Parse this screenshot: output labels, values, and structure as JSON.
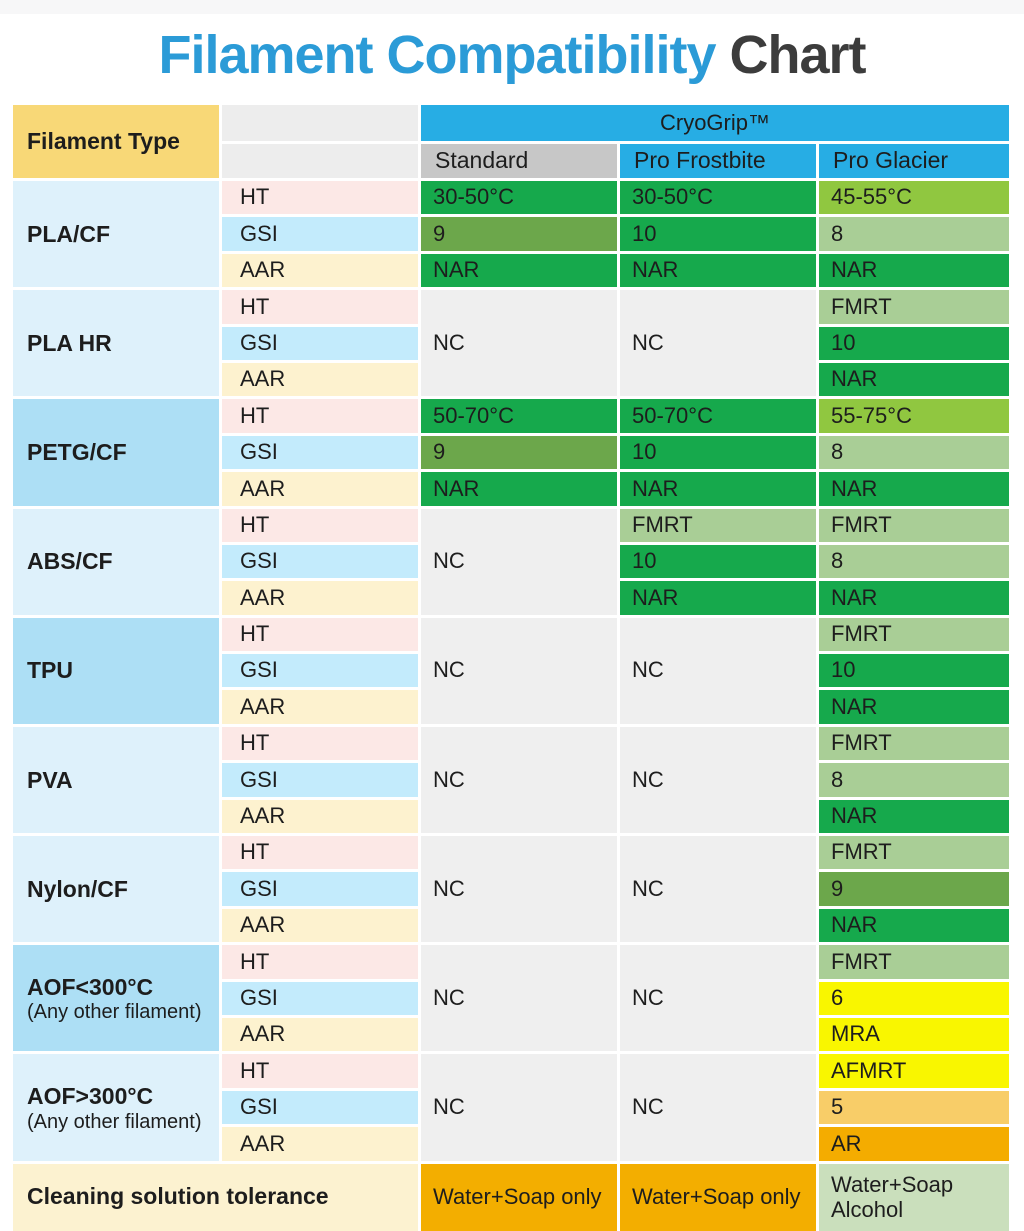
{
  "title": {
    "highlight": "Filament Compatibility",
    "rest": "Chart"
  },
  "palette": {
    "title_blue": "#2b9bd7",
    "title_dark": "#3c3c3c",
    "header_blue": "#27ade4",
    "header_gray": "#c7c7c7",
    "header_yellow": "#f8d877",
    "row_blue_light": "#def1fb",
    "row_blue_dark": "#addff5",
    "metric_pink": "#fce8e6",
    "metric_cyan": "#c3ebfc",
    "metric_cream": "#fdf2cf",
    "value_green": "#16a94c",
    "value_olive": "#6ca74b",
    "value_sage": "#a9ce96",
    "value_lime": "#90c740",
    "value_yellow": "#f9f600",
    "value_amber": "#f8cd68",
    "value_orange": "#f4ac00",
    "nc_gray": "#efefef",
    "footer_cream": "#fcf2d0",
    "footer_orange": "#f3ae00",
    "footer_sage": "#cadfbc"
  },
  "header": {
    "filament_type": "Filament Type",
    "brand": "CryoGrip™",
    "plates": [
      "Standard",
      "Pro Frostbite",
      "Pro Glacier"
    ]
  },
  "metrics": [
    "HT",
    "GSI",
    "AAR"
  ],
  "groups": [
    {
      "label": "PLA/CF",
      "note": "",
      "std": [
        "30-50°C",
        "9",
        "NAR"
      ],
      "fro": [
        "30-50°C",
        "10",
        "NAR"
      ],
      "gla": [
        "45-55°C",
        "8",
        "NAR"
      ]
    },
    {
      "label": "PLA HR",
      "note": "",
      "std": "NC",
      "fro": "NC",
      "gla": [
        "FMRT",
        "10",
        "NAR"
      ]
    },
    {
      "label": "PETG/CF",
      "note": "",
      "std": [
        "50-70°C",
        "9",
        "NAR"
      ],
      "fro": [
        "50-70°C",
        "10",
        "NAR"
      ],
      "gla": [
        "55-75°C",
        "8",
        "NAR"
      ]
    },
    {
      "label": "ABS/CF",
      "note": "",
      "std": "NC",
      "fro": [
        "FMRT",
        "10",
        "NAR"
      ],
      "gla": [
        "FMRT",
        "8",
        "NAR"
      ]
    },
    {
      "label": "TPU",
      "note": "",
      "std": "NC",
      "fro": "NC",
      "gla": [
        "FMRT",
        "10",
        "NAR"
      ]
    },
    {
      "label": "PVA",
      "note": "",
      "std": "NC",
      "fro": "NC",
      "gla": [
        "FMRT",
        "8",
        "NAR"
      ]
    },
    {
      "label": "Nylon/CF",
      "note": "",
      "std": "NC",
      "fro": "NC",
      "gla": [
        "FMRT",
        "9",
        "NAR"
      ]
    },
    {
      "label": "AOF<300°C",
      "note": "(Any other filament)",
      "std": "NC",
      "fro": "NC",
      "gla": [
        "FMRT",
        "6",
        "MRA"
      ]
    },
    {
      "label": "AOF>300°C",
      "note": "(Any other filament)",
      "std": "NC",
      "fro": "NC",
      "gla": [
        "AFMRT",
        "5",
        "AR"
      ]
    }
  ],
  "footer": {
    "label": "Cleaning solution tolerance",
    "values": [
      "Water+Soap only",
      "Water+Soap only",
      "Water+Soap Alcohol"
    ]
  }
}
